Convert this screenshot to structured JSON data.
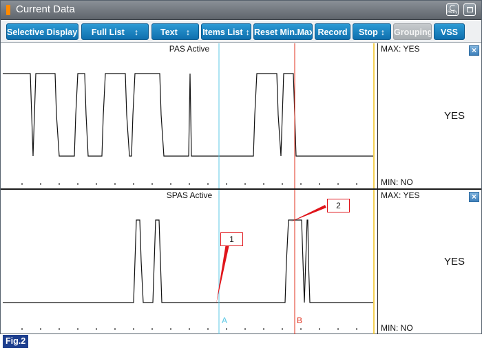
{
  "window": {
    "title": "Current Data",
    "retry_label": "Retry",
    "accent_color": "#ff8a00"
  },
  "toolbar": {
    "buttons": [
      {
        "label": "Selective Display",
        "dropdown": true,
        "enabled": true
      },
      {
        "label": "Full List",
        "dropdown": true,
        "enabled": true
      },
      {
        "label": "Text",
        "dropdown": true,
        "enabled": true
      },
      {
        "label": "Items List",
        "dropdown": true,
        "enabled": true
      },
      {
        "label": "Reset Min.Max",
        "dropdown": false,
        "enabled": true
      },
      {
        "label": "Record",
        "dropdown": false,
        "enabled": true
      },
      {
        "label": "Stop",
        "dropdown": true,
        "enabled": true
      },
      {
        "label": "Grouping",
        "dropdown": false,
        "enabled": false
      },
      {
        "label": "VSS",
        "dropdown": false,
        "enabled": true
      }
    ],
    "dropdown_glyph": "↕",
    "button_color": "#1a7fbf"
  },
  "graphs": [
    {
      "title": "PAS Active",
      "max_label": "MAX: YES",
      "min_label": "MIN: NO",
      "current_value": "YES"
    },
    {
      "title": "SPAS Active",
      "max_label": "MAX: YES",
      "min_label": "MIN: NO",
      "current_value": "YES"
    }
  ],
  "cursors": {
    "a_label": "A",
    "b_label": "B",
    "a_color": "#5bc8e6",
    "b_color": "#e0301e"
  },
  "callouts": [
    {
      "label": "1"
    },
    {
      "label": "2"
    }
  ],
  "close_glyph": "×",
  "figure_label": "Fig.2"
}
